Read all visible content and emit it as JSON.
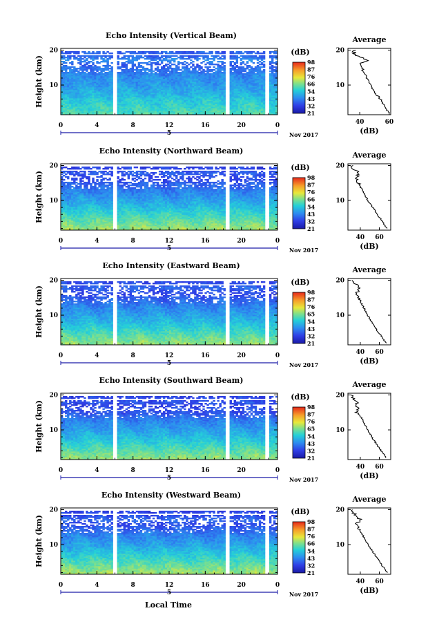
{
  "figure": {
    "time_axis_label": "Local Time",
    "date_label": "Nov 2017",
    "day_label": "5"
  },
  "chart_data": [
    {
      "type": "heatmap",
      "title": "Echo Intensity (Vertical Beam)",
      "ylabel": "Height (km)",
      "xticks": [
        "0",
        "4",
        "8",
        "12",
        "16",
        "20",
        "0"
      ],
      "yticks": [
        "10",
        "20"
      ],
      "xlim": [
        0,
        24
      ],
      "ylim": [
        1.5,
        20.5
      ],
      "colorbar_label": "(dB)",
      "colorbar_ticks": [
        "21",
        "32",
        "43",
        "54",
        "66",
        "76",
        "87",
        "98"
      ],
      "data_gaps_hours": [
        [
          5.8,
          6.2
        ],
        [
          18.2,
          18.6
        ],
        [
          22.6,
          23.0
        ]
      ],
      "intensity_profile": {
        "height_km": [
          2,
          4,
          6,
          8,
          10,
          12,
          14,
          16,
          17,
          18,
          19,
          20
        ],
        "intensity_db": [
          60,
          57,
          54,
          50,
          47,
          45,
          42,
          39,
          47,
          40,
          37,
          36
        ]
      },
      "average": {
        "title": "Average",
        "xlabel": "(dB)",
        "xticks": [
          "40",
          "60"
        ],
        "xlim": [
          32,
          61
        ],
        "yticks": [
          "10",
          "20"
        ],
        "ylim": [
          1.5,
          20.5
        ]
      }
    },
    {
      "type": "heatmap",
      "title": "Echo Intensity (Northward Beam)",
      "ylabel": "Height (km)",
      "xticks": [
        "0",
        "4",
        "8",
        "12",
        "16",
        "20",
        "0"
      ],
      "yticks": [
        "10",
        "20"
      ],
      "xlim": [
        0,
        24
      ],
      "ylim": [
        1.5,
        20.5
      ],
      "colorbar_label": "(dB)",
      "colorbar_ticks": [
        "21",
        "32",
        "43",
        "54",
        "66",
        "76",
        "87",
        "98"
      ],
      "data_gaps_hours": [
        [
          5.8,
          6.2
        ],
        [
          18.2,
          18.6
        ],
        [
          22.6,
          23.0
        ]
      ],
      "intensity_profile": {
        "height_km": [
          2,
          4,
          6,
          8,
          10,
          12,
          14,
          16,
          18,
          19,
          20
        ],
        "intensity_db": [
          68,
          63,
          58,
          53,
          48,
          44,
          40,
          36,
          38,
          33,
          31
        ]
      },
      "average": {
        "title": "Average",
        "xlabel": "(dB)",
        "xticks": [
          "40",
          "60"
        ],
        "xlim": [
          27,
          72
        ],
        "yticks": [
          "10",
          "20"
        ],
        "ylim": [
          1.5,
          20.5
        ]
      }
    },
    {
      "type": "heatmap",
      "title": "Echo Intensity (Eastward Beam)",
      "ylabel": "Height (km)",
      "xticks": [
        "0",
        "4",
        "8",
        "12",
        "16",
        "20",
        "0"
      ],
      "yticks": [
        "10",
        "20"
      ],
      "xlim": [
        0,
        24
      ],
      "ylim": [
        1.5,
        20.5
      ],
      "colorbar_label": "(dB)",
      "colorbar_ticks": [
        "21",
        "32",
        "43",
        "54",
        "65",
        "76",
        "87",
        "98"
      ],
      "data_gaps_hours": [
        [
          5.8,
          6.2
        ],
        [
          18.2,
          18.6
        ],
        [
          22.6,
          23.0
        ]
      ],
      "intensity_profile": {
        "height_km": [
          2,
          4,
          6,
          8,
          10,
          12,
          14,
          16,
          18,
          19,
          20
        ],
        "intensity_db": [
          67,
          62,
          57,
          52,
          48,
          44,
          40,
          36,
          39,
          34,
          32
        ]
      },
      "average": {
        "title": "Average",
        "xlabel": "(dB)",
        "xticks": [
          "40",
          "60"
        ],
        "xlim": [
          27,
          72
        ],
        "yticks": [
          "10",
          "20"
        ],
        "ylim": [
          1.5,
          20.5
        ]
      }
    },
    {
      "type": "heatmap",
      "title": "Echo Intensity (Southward Beam)",
      "ylabel": "Height (km)",
      "xticks": [
        "0",
        "4",
        "8",
        "12",
        "16",
        "20",
        "0"
      ],
      "yticks": [
        "10",
        "20"
      ],
      "xlim": [
        0,
        24
      ],
      "ylim": [
        1.5,
        20.5
      ],
      "colorbar_label": "(dB)",
      "colorbar_ticks": [
        "21",
        "32",
        "43",
        "54",
        "65",
        "76",
        "87",
        "98"
      ],
      "data_gaps_hours": [
        [
          5.8,
          6.2
        ],
        [
          18.2,
          18.6
        ],
        [
          22.6,
          23.0
        ]
      ],
      "intensity_profile": {
        "height_km": [
          2,
          4,
          6,
          8,
          10,
          12,
          14,
          15,
          16,
          17,
          18,
          19,
          20
        ],
        "intensity_db": [
          67,
          62,
          57,
          52,
          48,
          44,
          40,
          36,
          38,
          34,
          37,
          33,
          31
        ]
      },
      "average": {
        "title": "Average",
        "xlabel": "(dB)",
        "xticks": [
          "40",
          "60"
        ],
        "xlim": [
          27,
          72
        ],
        "yticks": [
          "10",
          "20"
        ],
        "ylim": [
          1.5,
          20.5
        ]
      }
    },
    {
      "type": "heatmap",
      "title": "Echo Intensity (Westward Beam)",
      "ylabel": "Height (km)",
      "xticks": [
        "0",
        "4",
        "8",
        "12",
        "16",
        "20",
        "0"
      ],
      "yticks": [
        "10",
        "20"
      ],
      "xlim": [
        0,
        24
      ],
      "ylim": [
        1.5,
        20.5
      ],
      "colorbar_label": "(dB)",
      "colorbar_ticks": [
        "21",
        "32",
        "43",
        "54",
        "66",
        "76",
        "87",
        "98"
      ],
      "data_gaps_hours": [
        [
          5.8,
          6.2
        ],
        [
          18.2,
          18.6
        ],
        [
          22.6,
          23.0
        ]
      ],
      "intensity_profile": {
        "height_km": [
          2,
          4,
          6,
          8,
          10,
          12,
          14,
          16,
          17,
          18,
          19,
          20
        ],
        "intensity_db": [
          68,
          63,
          58,
          53,
          48,
          44,
          40,
          36,
          41,
          36,
          33,
          31
        ]
      },
      "average": {
        "title": "Average",
        "xlabel": "(dB)",
        "xticks": [
          "40",
          "60"
        ],
        "xlim": [
          27,
          72
        ],
        "yticks": [
          "10",
          "20"
        ],
        "ylim": [
          1.5,
          20.5
        ]
      }
    }
  ]
}
